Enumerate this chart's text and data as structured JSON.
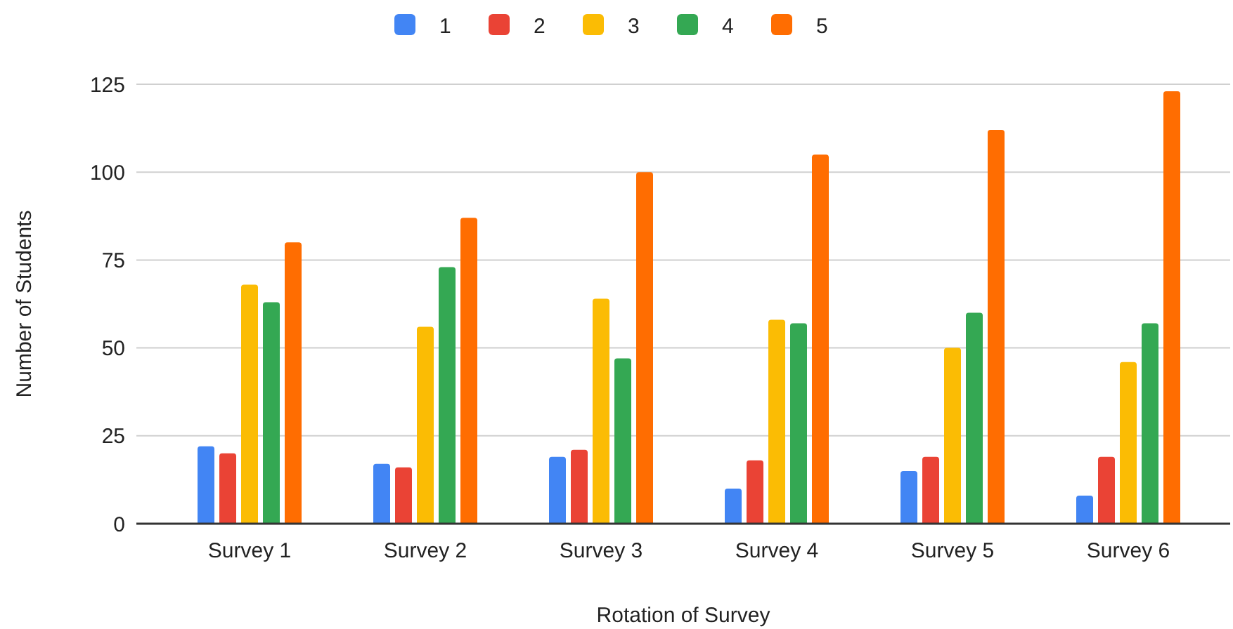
{
  "chart_data": {
    "type": "bar",
    "xlabel": "Rotation of Survey",
    "ylabel": "Number of Students",
    "categories": [
      "Survey 1",
      "Survey 2",
      "Survey 3",
      "Survey 4",
      "Survey 5",
      "Survey 6"
    ],
    "series": [
      {
        "name": "1",
        "color": "#4285f4",
        "values": [
          22,
          17,
          19,
          10,
          15,
          8
        ]
      },
      {
        "name": "2",
        "color": "#ea4335",
        "values": [
          20,
          16,
          21,
          18,
          19,
          19
        ]
      },
      {
        "name": "3",
        "color": "#fbbc04",
        "values": [
          68,
          56,
          64,
          58,
          50,
          46
        ]
      },
      {
        "name": "4",
        "color": "#34a853",
        "values": [
          63,
          73,
          47,
          57,
          60,
          57
        ]
      },
      {
        "name": "5",
        "color": "#ff6d01",
        "values": [
          80,
          87,
          100,
          105,
          112,
          123
        ]
      }
    ],
    "ylim": [
      0,
      125
    ],
    "yticks": [
      0,
      25,
      50,
      75,
      100,
      125
    ],
    "grid": "y",
    "legend": "top"
  }
}
